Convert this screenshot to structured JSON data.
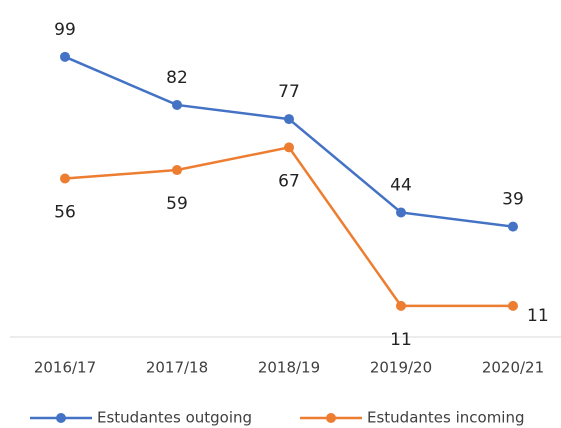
{
  "chart_data": {
    "type": "line",
    "categories": [
      "2016/17",
      "2017/18",
      "2018/19",
      "2019/20",
      "2020/21"
    ],
    "series": [
      {
        "name": "Estudantes outgoing",
        "color": "#4472c4",
        "values": [
          99,
          82,
          77,
          44,
          39
        ]
      },
      {
        "name": "Estudantes incoming",
        "color": "#ed7d31",
        "values": [
          56,
          59,
          67,
          11,
          11
        ]
      }
    ],
    "ylim": [
      0,
      120
    ],
    "legend": "bottom"
  }
}
